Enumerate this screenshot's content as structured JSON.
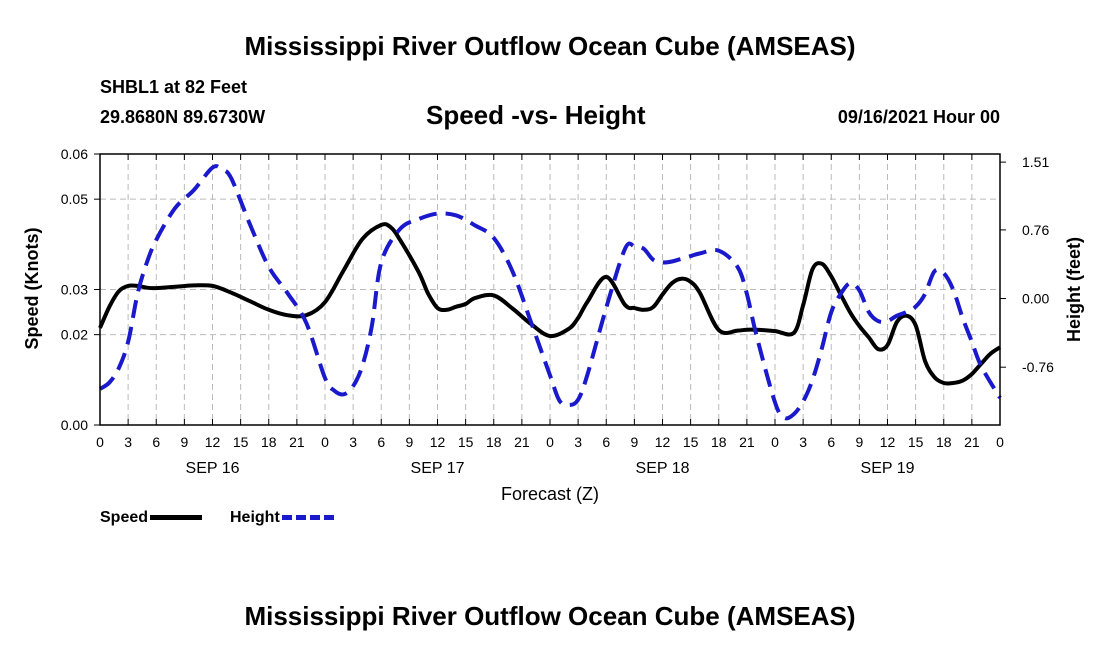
{
  "header": {
    "title": "Mississippi River Outflow Ocean Cube (AMSEAS)",
    "station": "SHBL1 at 82 Feet",
    "coords": "29.8680N  89.6730W",
    "plot_title": "Speed -vs- Height",
    "date": "09/16/2021 Hour 00"
  },
  "footer": {
    "title": "Mississippi River Outflow Ocean Cube (AMSEAS)"
  },
  "legend": {
    "speed_label": "Speed",
    "height_label": "Height"
  },
  "colors": {
    "speed": "#000000",
    "height": "#1a1acc",
    "grid": "#bbbbbb"
  },
  "chart_data": {
    "type": "line",
    "title": "Speed -vs- Height",
    "xlabel": "Forecast (Z)",
    "ylabel": "Speed (Knots)",
    "y2label": "Height (feet)",
    "xlim": [
      0,
      96
    ],
    "ylim": [
      0.0,
      0.06
    ],
    "y2lim": [
      -1.4,
      1.6
    ],
    "x_ticks": [
      0,
      3,
      6,
      9,
      12,
      15,
      18,
      21,
      24,
      27,
      30,
      33,
      36,
      39,
      42,
      45,
      48,
      51,
      54,
      57,
      60,
      63,
      66,
      69,
      72,
      75,
      78,
      81,
      84,
      87,
      90,
      93,
      96
    ],
    "x_tick_labels": [
      "0",
      "3",
      "6",
      "9",
      "12",
      "15",
      "18",
      "21",
      "0",
      "3",
      "6",
      "9",
      "12",
      "15",
      "18",
      "21",
      "0",
      "3",
      "6",
      "9",
      "12",
      "15",
      "18",
      "21",
      "0",
      "3",
      "6",
      "9",
      "12",
      "15",
      "18",
      "21",
      "0"
    ],
    "day_labels": [
      {
        "x": 12,
        "label": "SEP 16"
      },
      {
        "x": 36,
        "label": "SEP 17"
      },
      {
        "x": 60,
        "label": "SEP 18"
      },
      {
        "x": 84,
        "label": "SEP 19"
      }
    ],
    "y_ticks": [
      0.0,
      0.02,
      0.03,
      0.05,
      0.06
    ],
    "y_tick_labels": [
      "0.00",
      "0.02",
      "0.03",
      "0.05",
      "0.06"
    ],
    "y2_ticks": [
      1.51,
      0.76,
      0.0,
      -0.76
    ],
    "y2_tick_labels": [
      "1.51",
      "0.76",
      "0.00",
      "-0.76"
    ],
    "series": [
      {
        "name": "Speed",
        "axis": "left",
        "style": "solid",
        "x": [
          0,
          1,
          2,
          3,
          4,
          5,
          6,
          8,
          10,
          12,
          14,
          16,
          18,
          20,
          22,
          24,
          26,
          28,
          30,
          31,
          32,
          34,
          35,
          36,
          37,
          38,
          39,
          40,
          42,
          44,
          46,
          48,
          50,
          51,
          52,
          54,
          56,
          57,
          58,
          59,
          60,
          61,
          62,
          63,
          64,
          66,
          68,
          69,
          70,
          72,
          74,
          75,
          76,
          77,
          78,
          79,
          80,
          81,
          82,
          83,
          84,
          85,
          86,
          87,
          88,
          89,
          90,
          91,
          92,
          93,
          94,
          95,
          96
        ],
        "values": [
          0.0215,
          0.0262,
          0.0296,
          0.0308,
          0.0308,
          0.0304,
          0.0303,
          0.0306,
          0.0309,
          0.0308,
          0.0293,
          0.0274,
          0.0255,
          0.0243,
          0.0243,
          0.0272,
          0.0343,
          0.0412,
          0.0443,
          0.0438,
          0.041,
          0.0338,
          0.0291,
          0.0259,
          0.0255,
          0.0262,
          0.0268,
          0.0281,
          0.0287,
          0.0258,
          0.0223,
          0.0197,
          0.0213,
          0.0237,
          0.0273,
          0.0328,
          0.0266,
          0.0259,
          0.0255,
          0.0261,
          0.0289,
          0.0314,
          0.0324,
          0.0317,
          0.0292,
          0.021,
          0.0209,
          0.0211,
          0.0211,
          0.0208,
          0.0204,
          0.0265,
          0.0345,
          0.0357,
          0.0329,
          0.0289,
          0.025,
          0.0219,
          0.0194,
          0.0168,
          0.0177,
          0.0228,
          0.0242,
          0.0221,
          0.0142,
          0.0106,
          0.0093,
          0.0093,
          0.0098,
          0.0113,
          0.0136,
          0.0158,
          0.0172
        ]
      },
      {
        "name": "Height",
        "axis": "right",
        "style": "dashed",
        "x": [
          0,
          1,
          2,
          3,
          4,
          5,
          6,
          8,
          10,
          12,
          13,
          14,
          16,
          18,
          20,
          22,
          24,
          25,
          26,
          27,
          28,
          29,
          30,
          32,
          34,
          36,
          38,
          40,
          42,
          44,
          46,
          48,
          49,
          50,
          51,
          52,
          54,
          56,
          57,
          58,
          59,
          60,
          61,
          62,
          63,
          64,
          66,
          68,
          69,
          70,
          72,
          73,
          74,
          75,
          76,
          77,
          78,
          79,
          80,
          81,
          82,
          83,
          84,
          85,
          86,
          87,
          88,
          89,
          90,
          91,
          92,
          93,
          94,
          96
        ],
        "values": [
          -1.0,
          -0.93,
          -0.77,
          -0.48,
          0.05,
          0.4,
          0.65,
          1.0,
          1.2,
          1.45,
          1.43,
          1.33,
          0.82,
          0.35,
          0.06,
          -0.27,
          -0.88,
          -1.02,
          -1.06,
          -0.97,
          -0.74,
          -0.3,
          0.4,
          0.77,
          0.88,
          0.94,
          0.92,
          0.81,
          0.67,
          0.3,
          -0.27,
          -0.85,
          -1.13,
          -1.18,
          -1.12,
          -0.84,
          -0.1,
          0.55,
          0.58,
          0.55,
          0.43,
          0.4,
          0.41,
          0.44,
          0.47,
          0.5,
          0.53,
          0.35,
          0.05,
          -0.4,
          -1.15,
          -1.32,
          -1.28,
          -1.14,
          -0.9,
          -0.55,
          -0.15,
          0.05,
          0.17,
          0.09,
          -0.15,
          -0.25,
          -0.25,
          -0.19,
          -0.15,
          -0.09,
          0.05,
          0.3,
          0.28,
          0.1,
          -0.21,
          -0.48,
          -0.75,
          -1.1
        ]
      }
    ]
  }
}
